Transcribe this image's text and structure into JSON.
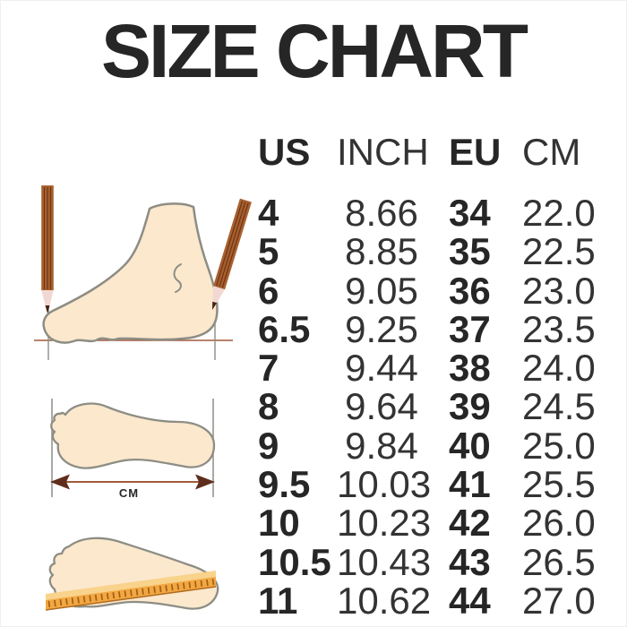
{
  "title": "SIZE CHART",
  "table": {
    "headers": [
      "US",
      "INCH",
      "EU",
      "CM"
    ],
    "rows": [
      [
        "4",
        "8.66",
        "34",
        "22.0"
      ],
      [
        "5",
        "8.85",
        "35",
        "22.5"
      ],
      [
        "6",
        "9.05",
        "36",
        "23.0"
      ],
      [
        "6.5",
        "9.25",
        "37",
        "23.5"
      ],
      [
        "7",
        "9.44",
        "38",
        "24.0"
      ],
      [
        "8",
        "9.64",
        "39",
        "24.5"
      ],
      [
        "9",
        "9.84",
        "40",
        "25.0"
      ],
      [
        "9.5",
        "10.03",
        "41",
        "25.5"
      ],
      [
        "10",
        "10.23",
        "42",
        "26.0"
      ],
      [
        "10.5",
        "10.43",
        "43",
        "26.5"
      ],
      [
        "11",
        "10.62",
        "44",
        "27.0"
      ]
    ]
  },
  "chart_data": {
    "type": "table",
    "title": "SIZE CHART",
    "columns": [
      "US",
      "INCH",
      "EU",
      "CM"
    ],
    "rows": [
      [
        4,
        8.66,
        34,
        22.0
      ],
      [
        5,
        8.85,
        35,
        22.5
      ],
      [
        6,
        9.05,
        36,
        23.0
      ],
      [
        6.5,
        9.25,
        37,
        23.5
      ],
      [
        7,
        9.44,
        38,
        24.0
      ],
      [
        8,
        9.64,
        39,
        24.5
      ],
      [
        9,
        9.84,
        40,
        25.0
      ],
      [
        9.5,
        10.03,
        41,
        25.5
      ],
      [
        10,
        10.23,
        42,
        26.0
      ],
      [
        10.5,
        10.43,
        43,
        26.5
      ],
      [
        11,
        10.62,
        44,
        27.0
      ]
    ]
  },
  "illustrations": {
    "arrow_label": "CM"
  },
  "colors": {
    "background": "#ffffff",
    "text_dark": "#262626",
    "text_mid": "#333333",
    "foot_fill": "#fbe8cd",
    "foot_outline": "#8d8d85",
    "pencil": "#a8602f",
    "pencil_dark": "#6e3315",
    "pencil_wood": "#f2d8d2",
    "pencil_lead": "#46220f",
    "measure_line": "#a05a3a",
    "arrow_dark": "#5f2d1c",
    "ruler": "#f2a842",
    "ruler_light": "#f9d38b",
    "ruler_tick": "#a35c17",
    "ruler_edge": "#b06a1e"
  }
}
